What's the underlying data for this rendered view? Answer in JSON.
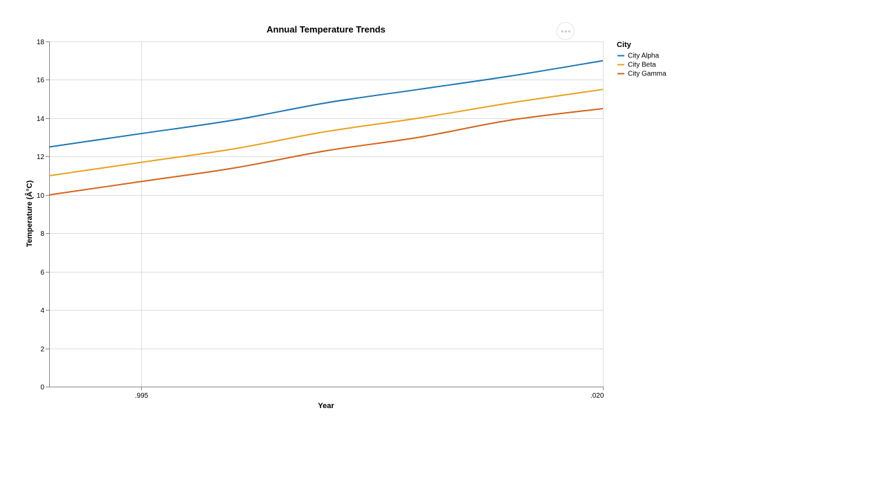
{
  "chart_data": {
    "type": "line",
    "title": "Annual Temperature Trends",
    "xlabel": "Year",
    "ylabel": "Temperature (Â°C)",
    "x_tick_labels": [
      ".995",
      ".020"
    ],
    "y_ticks": [
      0,
      2,
      4,
      6,
      8,
      10,
      12,
      14,
      16,
      18
    ],
    "ylim": [
      0,
      18
    ],
    "grid": true,
    "legend": {
      "title": "City",
      "position": "right"
    },
    "x": [
      1990,
      1995,
      2000,
      2005,
      2010,
      2015,
      2020
    ],
    "series": [
      {
        "name": "City Alpha",
        "color": "#1f77b4",
        "values": [
          12.5,
          13.2,
          13.9,
          14.8,
          15.5,
          16.2,
          17.0
        ]
      },
      {
        "name": "City Beta",
        "color": "#e8a21e",
        "values": [
          11.0,
          11.7,
          12.4,
          13.3,
          14.0,
          14.8,
          15.5
        ]
      },
      {
        "name": "City Gamma",
        "color": "#d2651a",
        "values": [
          10.0,
          10.7,
          11.4,
          12.3,
          13.0,
          13.9,
          14.5
        ]
      }
    ]
  },
  "ui": {
    "menu_icon": "more-horizontal-icon"
  }
}
